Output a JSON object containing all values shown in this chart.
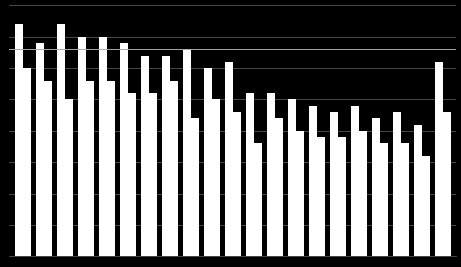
{
  "background_color": "#000000",
  "bar_color": "#ffffff",
  "grid_color": "#666666",
  "line_color": "#aaaaaa",
  "n_groups": 21,
  "ylim": [
    60,
    100
  ],
  "bar_width": 0.38,
  "group1": [
    97,
    94,
    97,
    95,
    95,
    94,
    92,
    92,
    93,
    90,
    91,
    86,
    86,
    85,
    84,
    83,
    84,
    82,
    83,
    81,
    91
  ],
  "group2": [
    90,
    88,
    85,
    88,
    88,
    86,
    86,
    88,
    82,
    85,
    83,
    78,
    82,
    80,
    79,
    79,
    80,
    78,
    78,
    76,
    83
  ],
  "hline_value": 93,
  "figsize": [
    4.61,
    2.67
  ],
  "dpi": 100
}
